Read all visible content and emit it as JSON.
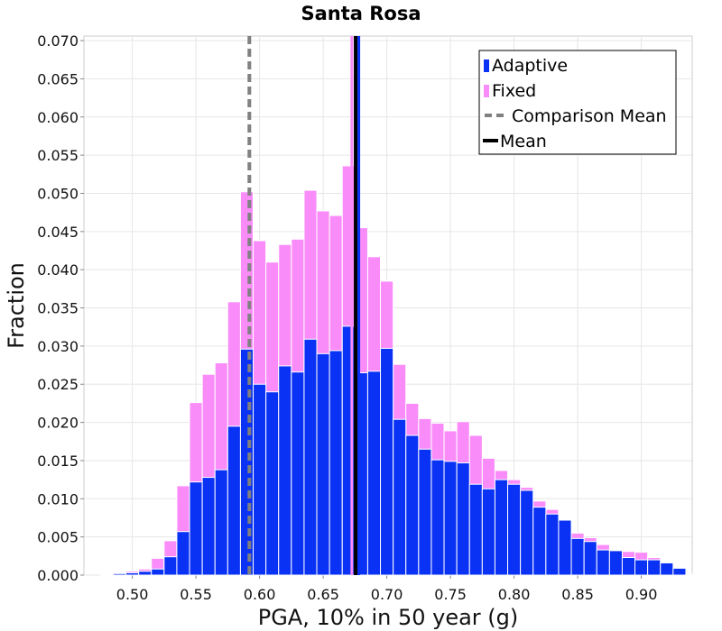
{
  "chart_data": {
    "type": "bar",
    "title": "Santa Rosa",
    "xlabel": "PGA, 10% in 50 year (g)",
    "ylabel": "Fraction",
    "xlim": [
      0.462,
      0.94
    ],
    "ylim": [
      0,
      0.0706
    ],
    "grid": true,
    "legend_position": "top-right",
    "bin_width": 0.01,
    "xticks": [
      0.5,
      0.55,
      0.6,
      0.65,
      0.7,
      0.75,
      0.8,
      0.85,
      0.9
    ],
    "xtick_labels": [
      "0.50",
      "0.55",
      "0.60",
      "0.65",
      "0.70",
      "0.75",
      "0.80",
      "0.85",
      "0.90"
    ],
    "yticks": [
      0,
      0.005,
      0.01,
      0.015,
      0.02,
      0.025,
      0.03,
      0.035,
      0.04,
      0.045,
      0.05,
      0.055,
      0.06,
      0.065,
      0.07
    ],
    "ytick_labels": [
      "0.000",
      "0.005",
      "0.010",
      "0.015",
      "0.020",
      "0.025",
      "0.030",
      "0.035",
      "0.040",
      "0.045",
      "0.050",
      "0.055",
      "0.060",
      "0.065",
      "0.070"
    ],
    "bin_left_edges": [
      0.465,
      0.475,
      0.485,
      0.495,
      0.505,
      0.515,
      0.525,
      0.535,
      0.545,
      0.555,
      0.565,
      0.575,
      0.585,
      0.595,
      0.605,
      0.615,
      0.625,
      0.635,
      0.645,
      0.655,
      0.665,
      0.675,
      0.685,
      0.695,
      0.705,
      0.715,
      0.725,
      0.735,
      0.745,
      0.755,
      0.765,
      0.775,
      0.785,
      0.795,
      0.805,
      0.815,
      0.825,
      0.835,
      0.845,
      0.855,
      0.865,
      0.875,
      0.885,
      0.895,
      0.905,
      0.915,
      0.925,
      0.935
    ],
    "series": [
      {
        "name": "Fixed",
        "color": "#fa8cfa",
        "values": [
          0.0,
          0.0001,
          0.0003,
          0.0005,
          0.0008,
          0.0022,
          0.0045,
          0.0117,
          0.0226,
          0.0263,
          0.0278,
          0.0358,
          0.0502,
          0.0438,
          0.041,
          0.0433,
          0.044,
          0.0504,
          0.0477,
          0.0471,
          0.0536,
          0.0455,
          0.0417,
          0.0385,
          0.0276,
          0.0225,
          0.0205,
          0.0199,
          0.0189,
          0.0201,
          0.0183,
          0.0153,
          0.0137,
          0.0125,
          0.0115,
          0.0097,
          0.0086,
          0.0061,
          0.0055,
          0.0049,
          0.004,
          0.0024,
          0.0031,
          0.003,
          0.0023,
          0.0012,
          0.0007,
          0.0002
        ]
      },
      {
        "name": "Adaptive",
        "color": "#0a32f5",
        "values": [
          0.0,
          0.0001,
          0.0002,
          0.0003,
          0.0005,
          0.0008,
          0.0024,
          0.0057,
          0.0122,
          0.0128,
          0.0138,
          0.0195,
          0.0296,
          0.025,
          0.024,
          0.0274,
          0.0266,
          0.0309,
          0.029,
          0.0294,
          0.0326,
          0.0265,
          0.0267,
          0.0297,
          0.0204,
          0.0183,
          0.0165,
          0.0151,
          0.0149,
          0.0147,
          0.0119,
          0.0113,
          0.0125,
          0.0119,
          0.0111,
          0.0089,
          0.008,
          0.0072,
          0.0048,
          0.0044,
          0.0033,
          0.0032,
          0.0023,
          0.002,
          0.002,
          0.0016,
          0.0009,
          0.0001
        ]
      }
    ],
    "lines": [
      {
        "name": "Comparison Mean",
        "x": 0.592,
        "style": "dashed",
        "color": "#808080"
      },
      {
        "name": "Mean",
        "x": 0.6755,
        "style": "solid",
        "color": "#000000"
      }
    ],
    "extra_lines": [
      {
        "x": 0.6725,
        "color": "#fa8cfa"
      },
      {
        "x": 0.678,
        "color": "#0a32f5"
      }
    ],
    "legend": [
      {
        "label": "Adaptive",
        "kind": "patch",
        "color": "#0a32f5"
      },
      {
        "label": "Fixed",
        "kind": "patch",
        "color": "#fa8cfa"
      },
      {
        "label": "Comparison Mean",
        "kind": "dashed-line",
        "color": "#808080"
      },
      {
        "label": "Mean",
        "kind": "solid-line",
        "color": "#000000"
      }
    ]
  }
}
